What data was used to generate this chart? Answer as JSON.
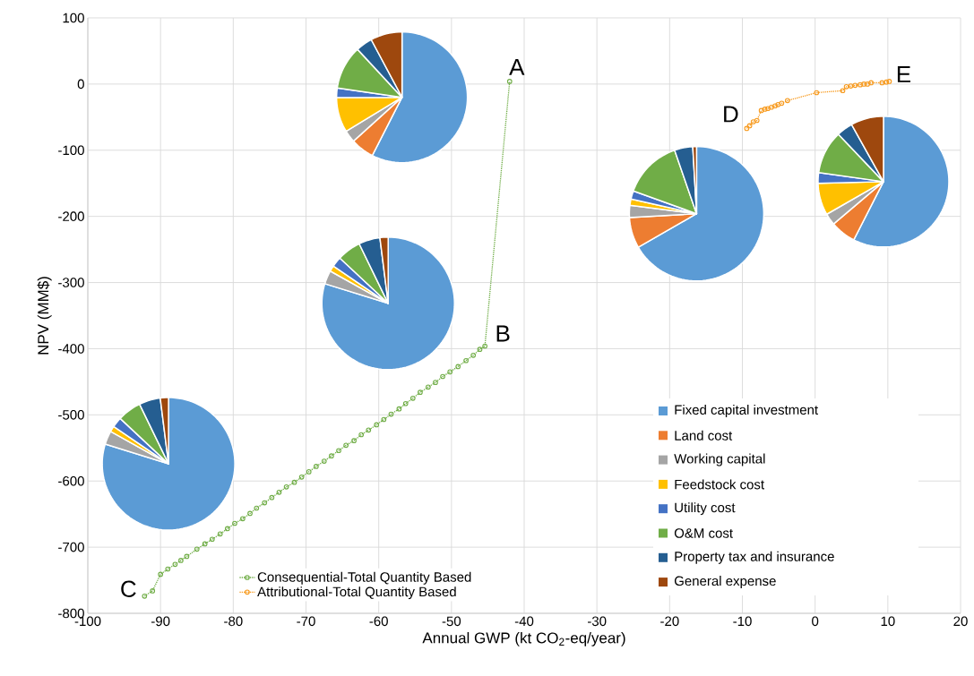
{
  "chart_data": [
    {
      "type": "line",
      "xlabel": "Annual GWP (kt CO$_{2}$-eq/year)",
      "ylabel": "NPV (MM$)",
      "xlim": [
        -100,
        20
      ],
      "ylim": [
        -800,
        100
      ],
      "xticks": [
        -100,
        -90,
        -80,
        -70,
        -60,
        -50,
        -40,
        -30,
        -20,
        -10,
        0,
        10,
        20
      ],
      "yticks": [
        -800,
        -700,
        -600,
        -500,
        -400,
        -300,
        -200,
        -100,
        0,
        100
      ],
      "grid": true,
      "legend": "bottom left",
      "marker": "circle",
      "line_style": "dotted",
      "series": [
        {
          "name": "Consequential-Total Quantity Based",
          "color": "#70ad47",
          "x": [
            -92.2,
            -91.1,
            -90.0,
            -89.0,
            -88.0,
            -87.2,
            -86.4,
            -85.0,
            -83.9,
            -82.9,
            -81.8,
            -80.8,
            -79.8,
            -78.7,
            -77.7,
            -76.8,
            -75.7,
            -74.7,
            -73.7,
            -72.7,
            -71.6,
            -70.6,
            -69.6,
            -68.6,
            -67.5,
            -66.5,
            -65.5,
            -64.5,
            -63.4,
            -62.4,
            -61.4,
            -60.3,
            -59.3,
            -58.3,
            -57.2,
            -56.3,
            -55.3,
            -54.3,
            -53.2,
            -52.2,
            -51.2,
            -50.2,
            -49.1,
            -48.0,
            -47.0,
            -46.1,
            -45.4,
            -42.0
          ],
          "values": [
            -774,
            -766,
            -741,
            -733,
            -726,
            -720,
            -714,
            -703,
            -695,
            -688,
            -680,
            -672,
            -664,
            -657,
            -649,
            -641,
            -633,
            -625,
            -617,
            -609,
            -602,
            -594,
            -586,
            -578,
            -570,
            -562,
            -554,
            -546,
            -539,
            -530,
            -523,
            -515,
            -507,
            -499,
            -491,
            -483,
            -475,
            -466,
            -458,
            -451,
            -442,
            -435,
            -427,
            -418,
            -410,
            -401,
            -396,
            4
          ]
        },
        {
          "name": "Attributional-Total Quantity Based",
          "color": "#f79a1e",
          "x": [
            -9.4,
            -9.0,
            -8.5,
            -8.0,
            -7.4,
            -6.9,
            -6.5,
            -6.0,
            -5.5,
            -5.1,
            -4.6,
            -3.8,
            0.2,
            3.8,
            4.3,
            4.9,
            5.5,
            6.2,
            6.7,
            7.2,
            7.7,
            9.2,
            9.8,
            10.2
          ],
          "values": [
            -67,
            -63,
            -57,
            -55,
            -40,
            -38,
            -37,
            -35,
            -33,
            -31,
            -29,
            -25,
            -13,
            -10,
            -4,
            -3,
            -2,
            -1,
            0,
            0,
            2,
            2,
            3,
            4
          ]
        }
      ],
      "annotations": [
        {
          "text": "A",
          "x": -42.0,
          "y": 4
        },
        {
          "text": "B",
          "x": -45.4,
          "y": -396
        },
        {
          "text": "C",
          "x": -92.2,
          "y": -774
        },
        {
          "text": "D",
          "x": -9.4,
          "y": -67
        },
        {
          "text": "E",
          "x": 10.2,
          "y": 4
        }
      ]
    },
    {
      "type": "pie",
      "legend": "bottom right",
      "categories": [
        "Fixed capital investment",
        "Land cost",
        "Working capital",
        "Feedstock cost",
        "Utility cost",
        "O&M cost",
        "Property tax and insurance",
        "General expense"
      ],
      "values": [
        57.5,
        5.8,
        3.0,
        8.6,
        2.4,
        10.8,
        4.1,
        7.8
      ],
      "colors": [
        "#5b9bd5",
        "#ed7d31",
        "#a5a5a5",
        "#ffc000",
        "#4472c4",
        "#70ad47",
        "#255e91",
        "#9e480e"
      ]
    },
    {
      "type": "pie",
      "categories": [
        null,
        null,
        null,
        null,
        null,
        null,
        null,
        null
      ],
      "values": [
        79.8,
        null,
        3.3,
        1.4,
        2.5,
        5.8,
        5.2,
        2.0
      ],
      "colors": [
        "#5b9bd5",
        "#ed7d31",
        "#a5a5a5",
        "#ffc000",
        "#4472c4",
        "#70ad47",
        "#255e91",
        "#9e480e"
      ]
    },
    {
      "type": "pie",
      "categories": [
        null,
        null,
        null,
        null,
        null,
        null,
        null,
        null
      ],
      "values": [
        79.8,
        null,
        3.3,
        1.4,
        2.5,
        5.8,
        5.2,
        2.0
      ],
      "colors": [
        "#5b9bd5",
        "#ed7d31",
        "#a5a5a5",
        "#ffc000",
        "#4472c4",
        "#70ad47",
        "#255e91",
        "#9e480e"
      ]
    },
    {
      "type": "pie",
      "categories": [
        null,
        null,
        null,
        null,
        null,
        null,
        null,
        null
      ],
      "values": [
        66.7,
        7.4,
        2.9,
        1.5,
        2.0,
        14.2,
        4.4,
        0.9
      ],
      "colors": [
        "#5b9bd5",
        "#ed7d31",
        "#a5a5a5",
        "#ffc000",
        "#4472c4",
        "#70ad47",
        "#255e91",
        "#9e480e"
      ]
    },
    {
      "type": "pie",
      "categories": [
        null,
        null,
        null,
        null,
        null,
        null,
        null,
        null
      ],
      "values": [
        57.5,
        6.3,
        2.9,
        7.9,
        2.6,
        10.7,
        4.0,
        8.1
      ],
      "colors": [
        "#5b9bd5",
        "#ed7d31",
        "#a5a5a5",
        "#ffc000",
        "#4472c4",
        "#70ad47",
        "#255e91",
        "#9e480e"
      ]
    }
  ]
}
